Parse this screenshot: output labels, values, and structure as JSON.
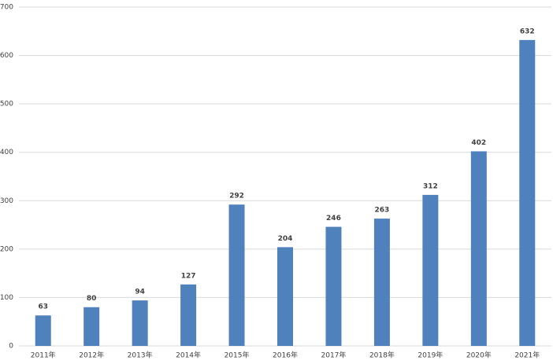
{
  "chart_data": {
    "type": "bar",
    "categories": [
      "2011年",
      "2012年",
      "2013年",
      "2014年",
      "2015年",
      "2016年",
      "2017年",
      "2018年",
      "2019年",
      "2020年",
      "2021年"
    ],
    "values": [
      63,
      80,
      94,
      127,
      292,
      204,
      246,
      263,
      312,
      402,
      632
    ],
    "color": "#4f81bd",
    "ylim": [
      0,
      700
    ],
    "yticks": [
      0,
      100,
      200,
      300,
      400,
      500,
      600,
      700
    ],
    "grid": true
  }
}
